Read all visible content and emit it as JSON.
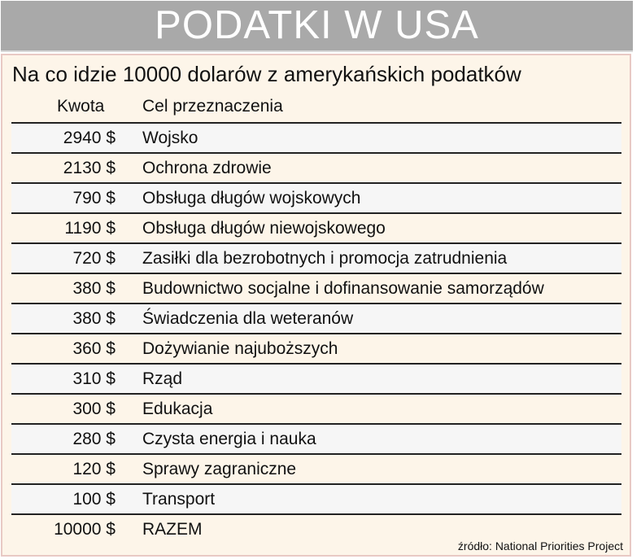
{
  "banner": {
    "title": "PODATKI W USA"
  },
  "panel": {
    "subtitle": "Na co idzie 10000 dolarów z amerykańskich podatków",
    "headers": {
      "amount": "Kwota",
      "purpose": "Cel przeznaczenia"
    },
    "rows": [
      {
        "amount": "2940 $",
        "purpose": "Wojsko"
      },
      {
        "amount": "2130 $",
        "purpose": "Ochrona zdrowie"
      },
      {
        "amount": "790 $",
        "purpose": "Obsługa długów wojskowych"
      },
      {
        "amount": "1190 $",
        "purpose": "Obsługa długów niewojskowego"
      },
      {
        "amount": "720 $",
        "purpose": "Zasiłki dla bezrobotnych i promocja zatrudnienia"
      },
      {
        "amount": "380 $",
        "purpose": "Budownictwo socjalne i dofinansowanie samorządów"
      },
      {
        "amount": "380 $",
        "purpose": "Świadczenia dla weteranów"
      },
      {
        "amount": "360 $",
        "purpose": "Dożywianie najuboższych"
      },
      {
        "amount": "310 $",
        "purpose": "Rząd"
      },
      {
        "amount": "300 $",
        "purpose": "Edukacja"
      },
      {
        "amount": "280 $",
        "purpose": "Czysta energia i nauka"
      },
      {
        "amount": "120 $",
        "purpose": "Sprawy zagraniczne"
      },
      {
        "amount": "100 $",
        "purpose": "Transport"
      },
      {
        "amount": "10000 $",
        "purpose": "RAZEM"
      }
    ],
    "source": "źródło: National Priorities Project"
  }
}
